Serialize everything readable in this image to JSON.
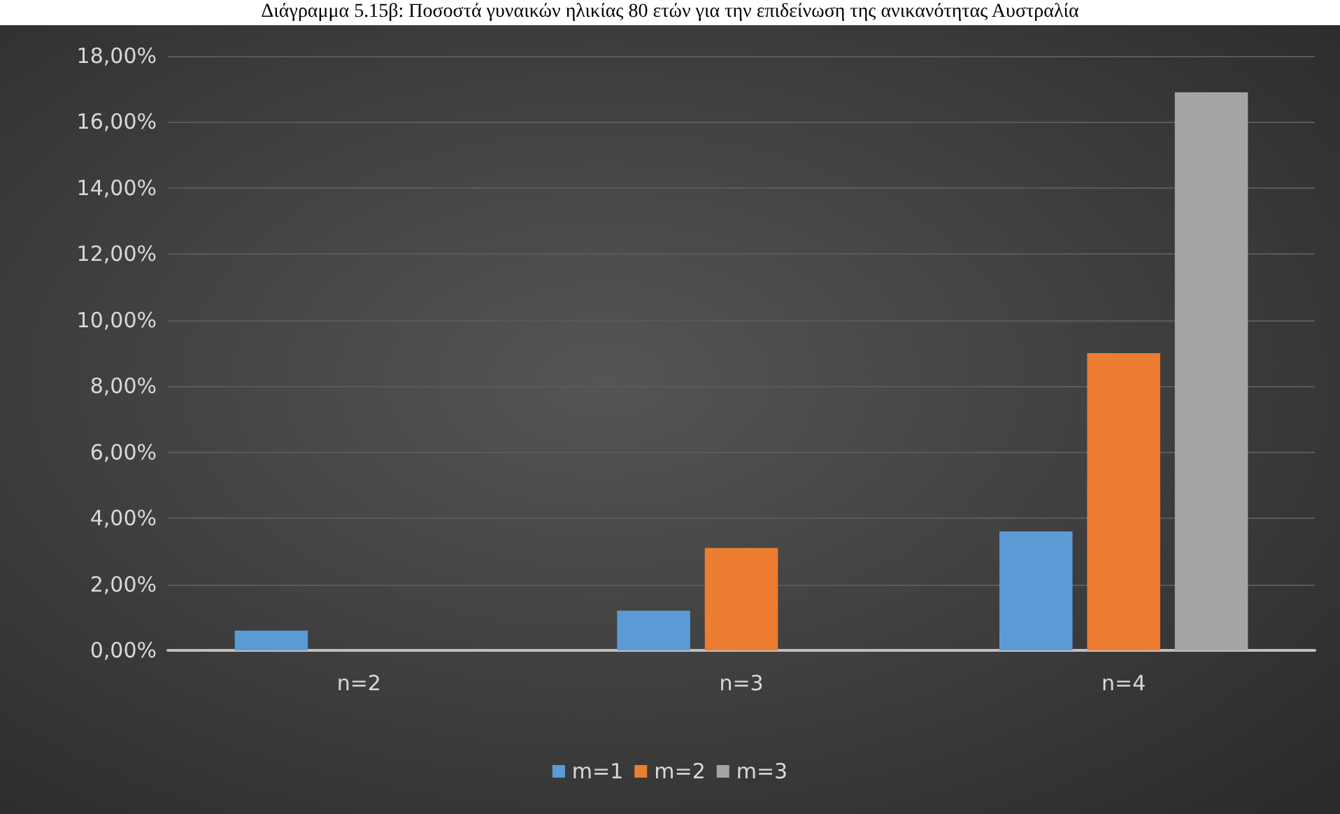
{
  "chart_data": {
    "type": "bar",
    "title": "Διάγραμμα 5.15β: Ποσοστά γυναικών ηλικίας 80 ετών για την επιδείνωση της ανικανότητας Αυστραλία",
    "categories": [
      "n=2",
      "n=3",
      "n=4"
    ],
    "series": [
      {
        "name": "m=1",
        "color": "#5b9bd5",
        "values": [
          0.6,
          1.2,
          3.6
        ]
      },
      {
        "name": "m=2",
        "color": "#ed7d31",
        "values": [
          null,
          3.1,
          9.0
        ]
      },
      {
        "name": "m=3",
        "color": "#a5a5a5",
        "values": [
          null,
          null,
          16.9
        ]
      }
    ],
    "ylim": [
      0,
      18
    ],
    "yticks": [
      {
        "value": 0,
        "label": "0,00%"
      },
      {
        "value": 2,
        "label": "2,00%"
      },
      {
        "value": 4,
        "label": "4,00%"
      },
      {
        "value": 6,
        "label": "6,00%"
      },
      {
        "value": 8,
        "label": "8,00%"
      },
      {
        "value": 10,
        "label": "10,00%"
      },
      {
        "value": 12,
        "label": "12,00%"
      },
      {
        "value": 14,
        "label": "14,00%"
      },
      {
        "value": 16,
        "label": "16,00%"
      },
      {
        "value": 18,
        "label": "18,00%"
      }
    ],
    "grid": "y",
    "legend": "bottom"
  }
}
